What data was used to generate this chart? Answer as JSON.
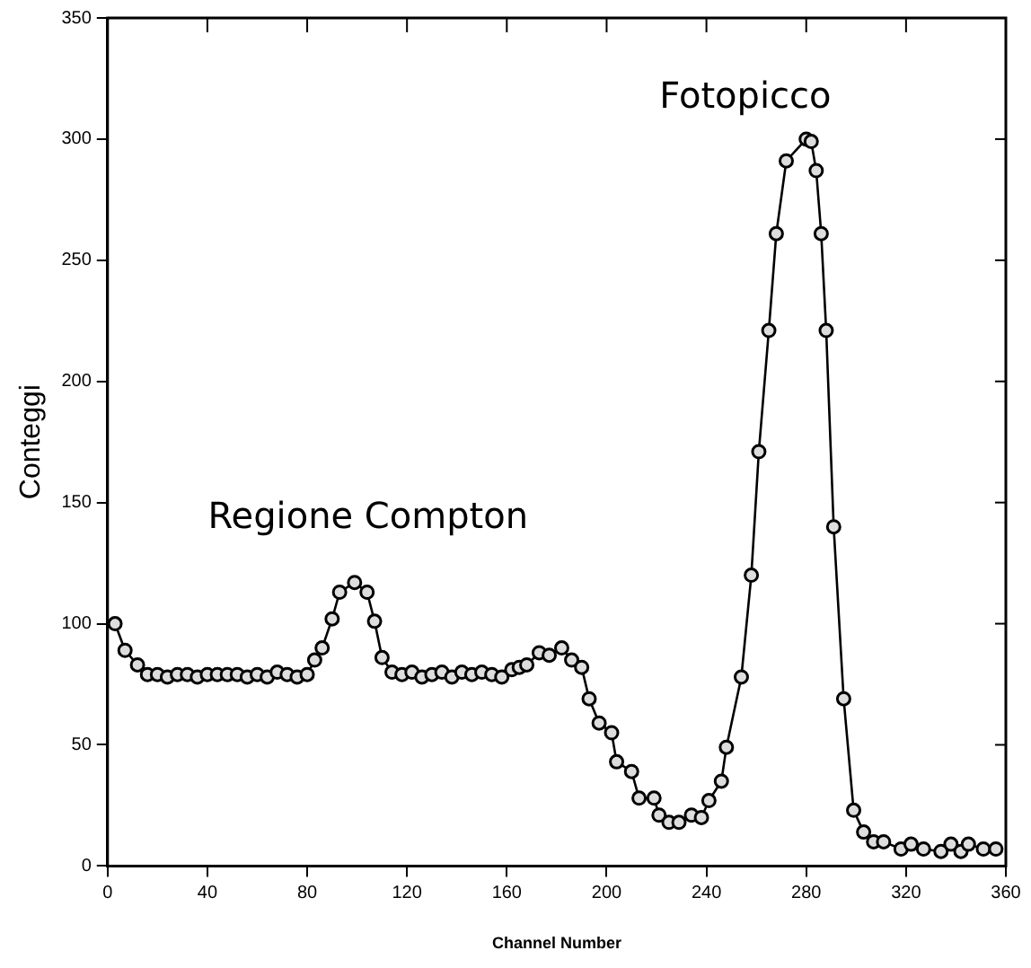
{
  "chart_data": {
    "type": "line",
    "xlabel": "Channel Number",
    "ylabel": "Conteggi",
    "x": [
      3,
      7,
      12,
      16,
      20,
      24,
      28,
      32,
      36,
      40,
      44,
      48,
      52,
      56,
      60,
      64,
      68,
      72,
      76,
      80,
      83,
      86,
      90,
      93,
      99,
      104,
      107,
      110,
      114,
      118,
      122,
      126,
      130,
      134,
      138,
      142,
      146,
      150,
      154,
      158,
      162,
      165,
      168,
      173,
      177,
      182,
      186,
      190,
      193,
      197,
      202,
      204,
      210,
      213,
      219,
      221,
      225,
      229,
      234,
      238,
      241,
      246,
      248,
      254,
      258,
      261,
      265,
      268,
      272,
      280,
      282,
      284,
      286,
      288,
      291,
      295,
      299,
      303,
      307,
      311,
      318,
      322,
      327,
      334,
      338,
      342,
      345,
      351,
      356
    ],
    "series": [
      {
        "color": "#000000",
        "values": [
          100,
          89,
          83,
          79,
          79,
          78,
          79,
          79,
          78,
          79,
          79,
          79,
          79,
          78,
          79,
          78,
          80,
          79,
          78,
          79,
          85,
          90,
          102,
          113,
          117,
          113,
          101,
          86,
          80,
          79,
          80,
          78,
          79,
          80,
          78,
          80,
          79,
          80,
          79,
          78,
          81,
          82,
          83,
          88,
          87,
          90,
          85,
          82,
          69,
          59,
          55,
          43,
          39,
          28,
          28,
          21,
          18,
          18,
          21,
          20,
          27,
          35,
          49,
          78,
          120,
          171,
          221,
          261,
          291,
          300,
          299,
          287,
          261,
          221,
          140,
          69,
          23,
          14,
          10,
          10,
          7,
          9,
          7,
          6,
          9,
          6,
          9,
          7,
          7
        ]
      }
    ],
    "xlim": [
      0,
      360
    ],
    "xticks": [
      0,
      40,
      80,
      120,
      160,
      200,
      240,
      280,
      320,
      360
    ],
    "ylim": [
      0,
      350
    ],
    "yticks": [
      0,
      50,
      100,
      150,
      200,
      250,
      300,
      350
    ],
    "marker": "circle",
    "line_style": "solid",
    "grid": false,
    "legend": false,
    "annotations": [
      "Regione Compton",
      "Fotopicco"
    ]
  }
}
